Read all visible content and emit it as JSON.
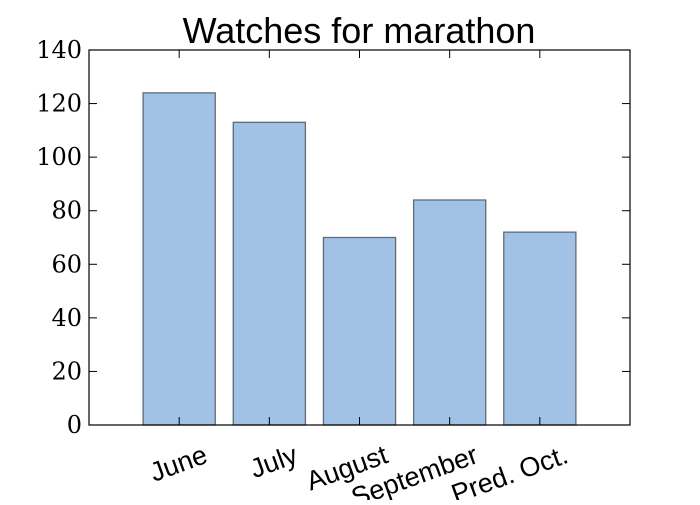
{
  "chart_data": {
    "type": "bar",
    "title": "Watches for marathon",
    "xlabel": "",
    "ylabel": "",
    "categories": [
      "June",
      "July",
      "August",
      "September",
      "Pred. Oct."
    ],
    "values": [
      124,
      113,
      70,
      84,
      72
    ],
    "ylim": [
      0,
      140
    ],
    "yticks": [
      0,
      20,
      40,
      60,
      80,
      100,
      120,
      140
    ],
    "ytick_labels": [
      "0",
      "20",
      "40",
      "60",
      "80",
      "100",
      "120",
      "140"
    ],
    "grid": false,
    "legend": null,
    "bar_color": "#a1c2e4",
    "bar_edge_color": "#5f6b78"
  }
}
